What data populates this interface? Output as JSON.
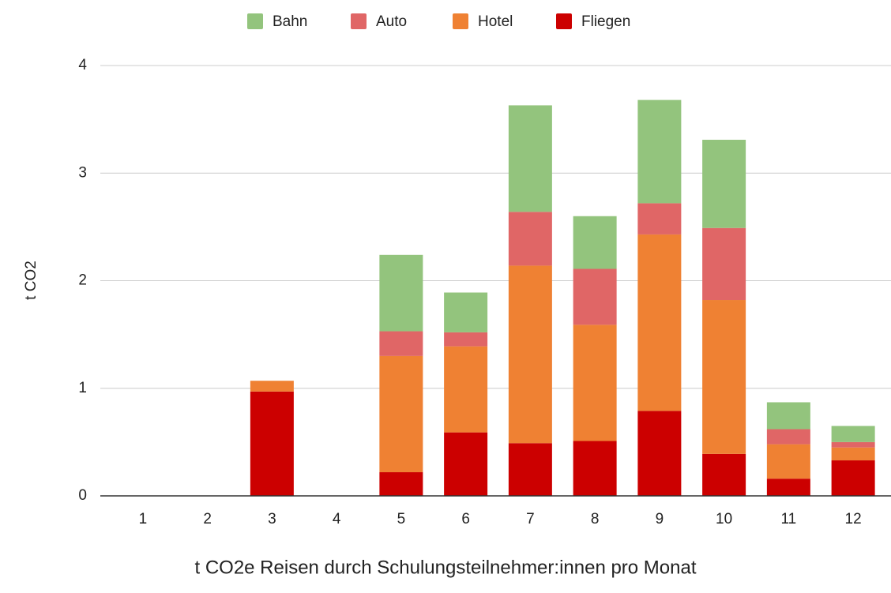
{
  "chart_data": {
    "type": "stacked_bar",
    "title": "t CO2e Reisen durch Schulungsteilnehmer:innen pro Monat",
    "y_label": "t CO2",
    "categories": [
      "1",
      "2",
      "3",
      "4",
      "5",
      "6",
      "7",
      "8",
      "9",
      "10",
      "11",
      "12"
    ],
    "series": [
      {
        "name": "Fliegen",
        "color": "#cc0000",
        "values": [
          0,
          0,
          0.97,
          0,
          0.22,
          0.59,
          0.49,
          0.51,
          0.79,
          0.39,
          0.16,
          0.33
        ]
      },
      {
        "name": "Hotel",
        "color": "#ef8133",
        "values": [
          0,
          0,
          0.1,
          0,
          1.08,
          0.8,
          1.65,
          1.08,
          1.64,
          1.43,
          0.32,
          0.12
        ]
      },
      {
        "name": "Auto",
        "color": "#e06666",
        "values": [
          0,
          0,
          0,
          0,
          0.23,
          0.13,
          0.5,
          0.52,
          0.29,
          0.67,
          0.14,
          0.05
        ]
      },
      {
        "name": "Bahn",
        "color": "#93c47d",
        "values": [
          0,
          0,
          0,
          0,
          0.71,
          0.37,
          0.99,
          0.49,
          0.96,
          0.82,
          0.25,
          0.15
        ]
      }
    ],
    "ylim": [
      0,
      4
    ],
    "yticks": [
      0,
      1,
      2,
      3,
      4
    ],
    "grid": true,
    "legend": "top"
  }
}
